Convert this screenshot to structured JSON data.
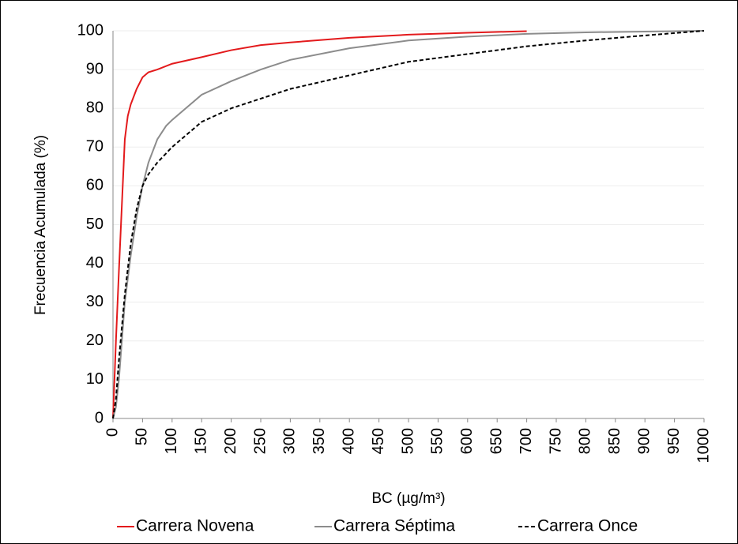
{
  "chart_data": {
    "type": "line",
    "xlabel": "BC (µg/m³)",
    "ylabel": "Frecuencia Acumulada (%)",
    "xlim": [
      0,
      1000
    ],
    "ylim": [
      0,
      100
    ],
    "xticks": [
      0,
      50,
      100,
      150,
      200,
      250,
      300,
      350,
      400,
      450,
      500,
      550,
      600,
      650,
      700,
      750,
      800,
      850,
      900,
      950,
      1000
    ],
    "yticks": [
      0,
      10,
      20,
      30,
      40,
      50,
      60,
      70,
      80,
      90,
      100
    ],
    "grid": true,
    "legend": "bottom",
    "series": [
      {
        "name": "Carrera Novena",
        "color": "#e31a1c",
        "dash": "solid",
        "x": [
          0,
          5,
          10,
          15,
          20,
          25,
          30,
          40,
          50,
          60,
          75,
          100,
          150,
          200,
          250,
          300,
          400,
          500,
          600,
          700
        ],
        "values": [
          0,
          20,
          38,
          55,
          72,
          78,
          81,
          85,
          88,
          89.3,
          90,
          91.5,
          93.2,
          95,
          96.3,
          97,
          98.2,
          99,
          99.5,
          99.9
        ]
      },
      {
        "name": "Carrera Séptima",
        "color": "#8c8c8c",
        "dash": "solid",
        "x": [
          0,
          5,
          10,
          15,
          20,
          30,
          40,
          50,
          60,
          75,
          90,
          100,
          150,
          200,
          250,
          300,
          400,
          500,
          600,
          700,
          800,
          900,
          1000
        ],
        "values": [
          0,
          3,
          10,
          20,
          30,
          42,
          52,
          60,
          66,
          72,
          75.5,
          77,
          83.5,
          87,
          90,
          92.5,
          95.5,
          97.5,
          98.5,
          99.2,
          99.6,
          99.8,
          100
        ]
      },
      {
        "name": "Carrera Once",
        "color": "#000000",
        "dash": "dashed",
        "x": [
          0,
          5,
          10,
          20,
          30,
          40,
          50,
          60,
          75,
          100,
          150,
          200,
          250,
          300,
          400,
          500,
          600,
          700,
          800,
          900,
          1000
        ],
        "values": [
          0,
          5,
          15,
          32,
          45,
          54,
          60,
          63,
          66,
          70,
          76.5,
          80,
          82.5,
          85,
          88.5,
          92,
          94,
          96,
          97.5,
          98.8,
          100
        ]
      }
    ]
  }
}
